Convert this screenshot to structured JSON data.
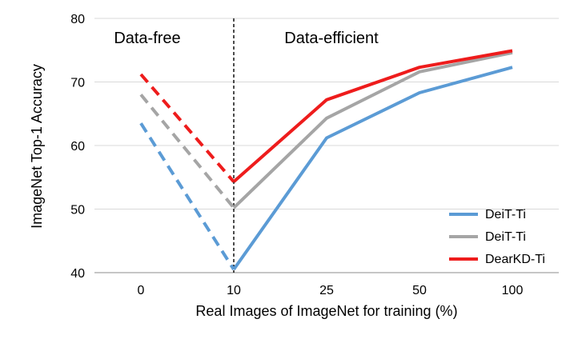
{
  "chart_data": {
    "type": "line",
    "title": "",
    "xlabel": "Real Images of ImageNet for training (%)",
    "ylabel": "ImageNet Top-1 Accuracy",
    "categories": [
      "0",
      "10",
      "25",
      "50",
      "100"
    ],
    "ylim": [
      40,
      80
    ],
    "yticks": [
      40,
      50,
      60,
      70,
      80
    ],
    "grid": "horizontal",
    "divider_at_category": "10",
    "regions": [
      {
        "label": "Data-free"
      },
      {
        "label": "Data-efficient"
      }
    ],
    "dashed_until_category": "10",
    "legend_position": "bottom-right",
    "series": [
      {
        "name": "DeiT-Ti",
        "color": "#5b9bd5",
        "values": [
          63.5,
          40.5,
          61.2,
          68.3,
          72.3
        ]
      },
      {
        "name": "DeiT-Ti",
        "color": "#a5a5a5",
        "values": [
          68.0,
          50.2,
          64.3,
          71.6,
          74.6
        ]
      },
      {
        "name": "DearKD-Ti",
        "color": "#ee1c1c",
        "values": [
          71.2,
          54.3,
          67.2,
          72.3,
          74.9
        ]
      }
    ]
  }
}
